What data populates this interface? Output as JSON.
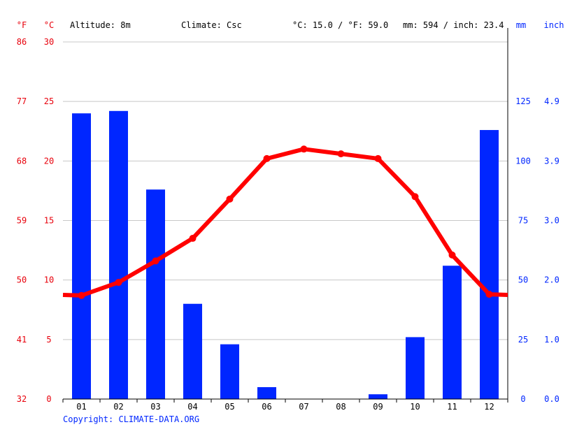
{
  "header": {
    "unit_f": "°F",
    "unit_c": "°C",
    "altitude": "Altitude: 8m",
    "climate": "Climate: Csc",
    "temp_summary": "°C: 15.0 / °F: 59.0",
    "precip_summary": "mm: 594 / inch: 23.4",
    "unit_mm": "mm",
    "unit_inch": "inch"
  },
  "copyright": "Copyright: CLIMATE-DATA.ORG",
  "colors": {
    "temperature": "#ff0000",
    "precipitation": "#0026ff",
    "temp_axis": "#e8000b",
    "grid": "#c8c8c8"
  },
  "chart_data": {
    "type": "bar",
    "categories": [
      "01",
      "02",
      "03",
      "04",
      "05",
      "06",
      "07",
      "08",
      "09",
      "10",
      "11",
      "12"
    ],
    "series": [
      {
        "values": [
          120,
          121,
          88,
          40,
          23,
          5,
          0,
          0,
          2,
          26,
          56,
          113
        ],
        "unit": "mm",
        "chart_type": "bar",
        "color": "#0026ff"
      },
      {
        "values": [
          8.7,
          9.8,
          11.6,
          13.5,
          16.8,
          20.2,
          21.0,
          20.6,
          20.2,
          17.0,
          12.1,
          8.8
        ],
        "unit": "°C",
        "chart_type": "line",
        "color": "#ff0000"
      }
    ],
    "temp_axis": {
      "ylim": [
        0,
        30
      ],
      "ticks_c": [
        0,
        5,
        10,
        15,
        20,
        25,
        30
      ],
      "ticks_f": [
        32,
        41,
        50,
        59,
        68,
        77,
        86
      ]
    },
    "precip_axis": {
      "ylim": [
        0,
        150
      ],
      "ticks_mm": [
        0,
        25,
        50,
        75,
        100,
        125
      ],
      "ticks_inch": [
        "0.0",
        "1.0",
        "2.0",
        "3.0",
        "3.9",
        "4.9"
      ]
    },
    "grid": true
  }
}
